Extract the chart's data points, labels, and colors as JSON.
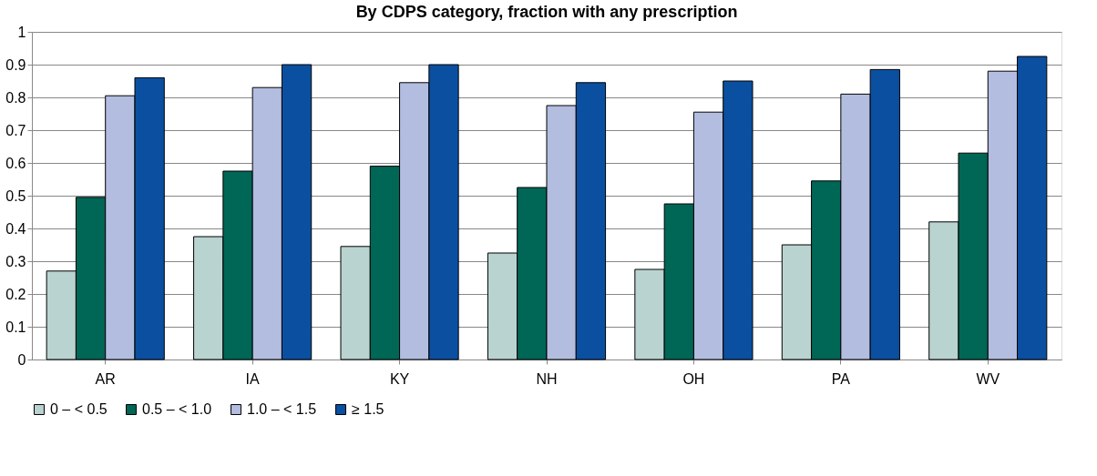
{
  "chart_data": {
    "type": "bar",
    "title": "By CDPS category, fraction with any prescription",
    "categories": [
      "AR",
      "IA",
      "KY",
      "NH",
      "OH",
      "PA",
      "WV"
    ],
    "series": [
      {
        "name": "0 – < 0.5",
        "color": "#b9d3d0",
        "values": [
          0.27,
          0.375,
          0.345,
          0.325,
          0.275,
          0.35,
          0.42
        ]
      },
      {
        "name": "0.5 – < 1.0",
        "color": "#006655",
        "values": [
          0.495,
          0.575,
          0.59,
          0.525,
          0.475,
          0.545,
          0.63
        ]
      },
      {
        "name": "1.0 – < 1.5",
        "color": "#b3bde0",
        "values": [
          0.805,
          0.83,
          0.845,
          0.775,
          0.755,
          0.81,
          0.88
        ]
      },
      {
        "name": "≥ 1.5",
        "color": "#0b4fa0",
        "values": [
          0.86,
          0.9,
          0.9,
          0.845,
          0.85,
          0.885,
          0.925
        ]
      }
    ],
    "ylim": [
      0,
      1
    ],
    "yticks": [
      0,
      0.1,
      0.2,
      0.3,
      0.4,
      0.5,
      0.6,
      0.7,
      0.8,
      0.9,
      1
    ],
    "grid": "y",
    "legend": "bottom"
  }
}
